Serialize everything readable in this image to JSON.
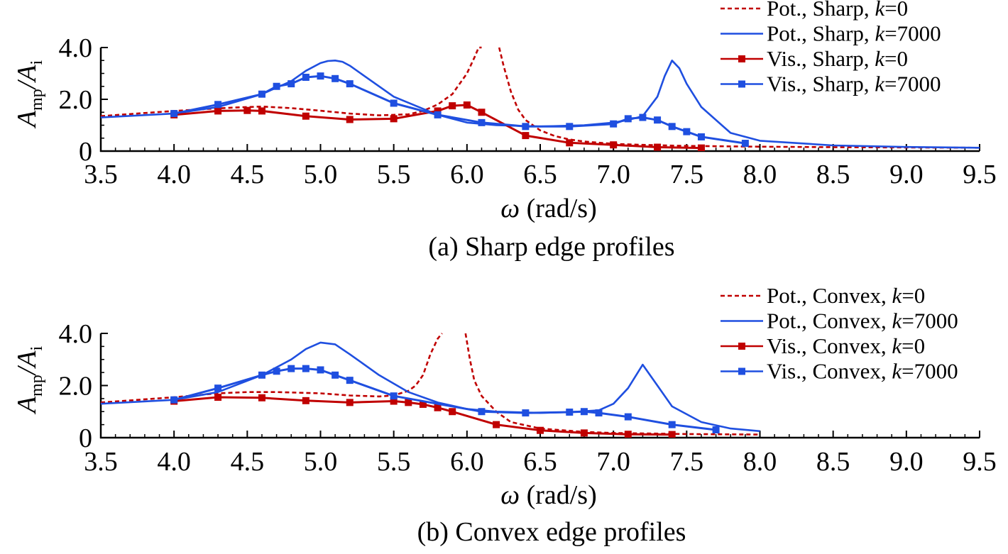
{
  "chart_data": [
    {
      "type": "line",
      "caption": "(a) Sharp edge profiles",
      "xlabel": "ω (rad/s)",
      "ylabel": {
        "symbol": "A",
        "num_sub": "mp",
        "slash": "/",
        "den_sub": "i"
      },
      "xlim": [
        3.5,
        9.5
      ],
      "ylim": [
        0,
        4.0
      ],
      "xticks": [
        "3.5",
        "4.0",
        "4.5",
        "5.0",
        "5.5",
        "6.0",
        "6.5",
        "7.0",
        "7.5",
        "8.0",
        "8.5",
        "9.0",
        "9.5"
      ],
      "yticks": [
        "0",
        "2.0",
        "4.0"
      ],
      "legend_position": "top-right",
      "series": [
        {
          "name": "Pot., Sharp, k=0",
          "legend": {
            "prefix": "Pot., Sharp, ",
            "italic": "k",
            "suffix": "=0"
          },
          "color": "#c00000",
          "style": "dashed",
          "marker": "none",
          "x": [
            3.5,
            3.8,
            4.0,
            4.2,
            4.4,
            4.6,
            4.8,
            5.0,
            5.2,
            5.4,
            5.6,
            5.7,
            5.8,
            5.9,
            6.0,
            6.05,
            6.08,
            6.1
          ],
          "y": [
            1.35,
            1.47,
            1.55,
            1.62,
            1.68,
            1.72,
            1.66,
            1.56,
            1.45,
            1.38,
            1.42,
            1.55,
            1.8,
            2.2,
            3.0,
            3.6,
            4.0,
            4.0
          ],
          "x2": [
            6.22,
            6.25,
            6.3,
            6.35,
            6.4,
            6.5,
            6.6,
            6.7,
            6.8,
            7.0,
            7.2,
            7.5,
            8.0,
            8.5,
            9.0,
            9.5
          ],
          "y2": [
            4.0,
            3.3,
            2.3,
            1.6,
            1.2,
            0.8,
            0.58,
            0.45,
            0.37,
            0.28,
            0.24,
            0.2,
            0.17,
            0.15,
            0.14,
            0.13
          ]
        },
        {
          "name": "Pot., Sharp, k=7000",
          "legend": {
            "prefix": "Pot., Sharp, ",
            "italic": "k",
            "suffix": "=7000"
          },
          "color": "#1f4fe0",
          "style": "solid",
          "marker": "none",
          "x": [
            3.5,
            4.0,
            4.3,
            4.6,
            4.8,
            4.9,
            5.0,
            5.05,
            5.1,
            5.15,
            5.2,
            5.3,
            5.5,
            5.8,
            6.0,
            6.2,
            6.5,
            6.8,
            7.0,
            7.1,
            7.2,
            7.3,
            7.35,
            7.4,
            7.45,
            7.5,
            7.6,
            7.8,
            8.0,
            8.5,
            9.0,
            9.5
          ],
          "y": [
            1.3,
            1.45,
            1.7,
            2.2,
            2.7,
            3.1,
            3.4,
            3.48,
            3.5,
            3.45,
            3.3,
            2.9,
            2.1,
            1.4,
            1.1,
            1.0,
            0.95,
            1.0,
            1.1,
            1.2,
            1.35,
            2.1,
            2.9,
            3.5,
            3.2,
            2.6,
            1.7,
            0.7,
            0.4,
            0.22,
            0.16,
            0.13
          ]
        },
        {
          "name": "Vis., Sharp, k=0",
          "legend": {
            "prefix": "Vis., Sharp, ",
            "italic": "k",
            "suffix": "=0"
          },
          "color": "#c00000",
          "style": "solid",
          "marker": "square",
          "x": [
            4.0,
            4.3,
            4.5,
            4.6,
            4.9,
            5.2,
            5.5,
            5.8,
            5.9,
            6.0,
            6.1,
            6.4,
            6.7,
            7.0,
            7.3,
            7.6
          ],
          "y": [
            1.4,
            1.55,
            1.57,
            1.55,
            1.35,
            1.22,
            1.25,
            1.55,
            1.75,
            1.78,
            1.5,
            0.6,
            0.32,
            0.24,
            0.15,
            0.12
          ]
        },
        {
          "name": "Vis., Sharp, k=7000",
          "legend": {
            "prefix": "Vis., Sharp, ",
            "italic": "k",
            "suffix": "=7000"
          },
          "color": "#1f4fe0",
          "style": "solid",
          "marker": "square",
          "x": [
            4.0,
            4.3,
            4.6,
            4.7,
            4.8,
            4.9,
            5.0,
            5.1,
            5.2,
            5.5,
            5.8,
            6.1,
            6.4,
            6.7,
            7.0,
            7.1,
            7.2,
            7.3,
            7.4,
            7.5,
            7.6,
            7.9
          ],
          "y": [
            1.45,
            1.8,
            2.2,
            2.5,
            2.6,
            2.85,
            2.9,
            2.8,
            2.6,
            1.85,
            1.4,
            1.1,
            0.95,
            0.95,
            1.05,
            1.25,
            1.3,
            1.2,
            0.95,
            0.75,
            0.55,
            0.3
          ]
        }
      ]
    },
    {
      "type": "line",
      "caption": "(b) Convex edge profiles",
      "xlabel": "ω (rad/s)",
      "ylabel": {
        "symbol": "A",
        "num_sub": "mp",
        "slash": "/",
        "den_sub": "i"
      },
      "xlim": [
        3.5,
        9.5
      ],
      "ylim": [
        0,
        4.0
      ],
      "xticks": [
        "3.5",
        "4.0",
        "4.5",
        "5.0",
        "5.5",
        "6.0",
        "6.5",
        "7.0",
        "7.5",
        "8.0",
        "8.5",
        "9.0",
        "9.5"
      ],
      "yticks": [
        "0",
        "2.0",
        "4.0"
      ],
      "legend_position": "top-right",
      "series": [
        {
          "name": "Pot., Convex, k=0",
          "legend": {
            "prefix": "Pot., Convex, ",
            "italic": "k",
            "suffix": "=0"
          },
          "color": "#c00000",
          "style": "dashed",
          "marker": "none",
          "x": [
            3.5,
            4.0,
            4.3,
            4.5,
            4.7,
            5.0,
            5.2,
            5.4,
            5.5,
            5.6,
            5.65,
            5.7,
            5.75,
            5.8,
            5.83
          ],
          "y": [
            1.35,
            1.55,
            1.7,
            1.75,
            1.75,
            1.7,
            1.62,
            1.58,
            1.62,
            1.8,
            2.0,
            2.4,
            3.2,
            3.8,
            4.0
          ],
          "x2": [
            5.99,
            6.02,
            6.05,
            6.1,
            6.2,
            6.3,
            6.5,
            6.8,
            7.0,
            7.5,
            8.0
          ],
          "y2": [
            4.0,
            3.0,
            2.2,
            1.6,
            1.0,
            0.6,
            0.35,
            0.22,
            0.18,
            0.14,
            0.12
          ]
        },
        {
          "name": "Pot., Convex, k=7000",
          "legend": {
            "prefix": "Pot., Convex, ",
            "italic": "k",
            "suffix": "=7000"
          },
          "color": "#1f4fe0",
          "style": "solid",
          "marker": "none",
          "x": [
            3.5,
            4.0,
            4.3,
            4.6,
            4.8,
            4.9,
            5.0,
            5.1,
            5.2,
            5.4,
            5.6,
            5.8,
            6.0,
            6.2,
            6.5,
            6.7,
            6.9,
            7.0,
            7.1,
            7.2,
            7.3,
            7.4,
            7.6,
            7.8,
            8.0
          ],
          "y": [
            1.3,
            1.45,
            1.75,
            2.4,
            3.0,
            3.4,
            3.65,
            3.58,
            3.2,
            2.4,
            1.75,
            1.35,
            1.1,
            1.0,
            0.95,
            0.98,
            1.05,
            1.3,
            1.9,
            2.8,
            2.0,
            1.2,
            0.6,
            0.35,
            0.25
          ]
        },
        {
          "name": "Vis., Convex, k=0",
          "legend": {
            "prefix": "Vis., Convex, ",
            "italic": "k",
            "suffix": "=0"
          },
          "color": "#c00000",
          "style": "solid",
          "marker": "square",
          "x": [
            4.0,
            4.3,
            4.6,
            4.9,
            5.2,
            5.5,
            5.6,
            5.7,
            5.8,
            5.9,
            6.2,
            6.5,
            6.8,
            7.1,
            7.4
          ],
          "y": [
            1.4,
            1.55,
            1.53,
            1.42,
            1.35,
            1.4,
            1.35,
            1.28,
            1.15,
            1.0,
            0.5,
            0.28,
            0.18,
            0.13,
            0.12
          ]
        },
        {
          "name": "Vis., Convex, k=7000",
          "legend": {
            "prefix": "Vis., Convex, ",
            "italic": "k",
            "suffix": "=7000"
          },
          "color": "#1f4fe0",
          "style": "solid",
          "marker": "square",
          "x": [
            4.0,
            4.3,
            4.6,
            4.7,
            4.8,
            4.9,
            5.0,
            5.1,
            5.2,
            5.5,
            6.1,
            6.4,
            6.7,
            6.8,
            6.9,
            7.1,
            7.4,
            7.7
          ],
          "y": [
            1.45,
            1.9,
            2.4,
            2.55,
            2.65,
            2.65,
            2.6,
            2.4,
            2.2,
            1.6,
            1.0,
            0.95,
            0.98,
            1.0,
            0.95,
            0.8,
            0.5,
            0.3
          ]
        }
      ]
    }
  ]
}
